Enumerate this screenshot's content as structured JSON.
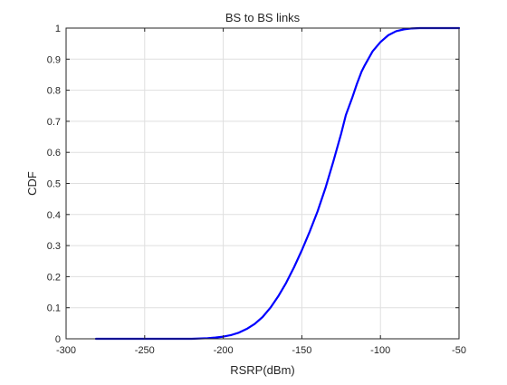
{
  "chart_data": {
    "type": "line",
    "title": "BS to BS links",
    "xlabel": "RSRP(dBm)",
    "ylabel": "CDF",
    "xlim": [
      -300,
      -50
    ],
    "ylim": [
      0,
      1
    ],
    "xticks": [
      -300,
      -250,
      -200,
      -150,
      -100,
      -50
    ],
    "xtick_labels": [
      "-300",
      "-250",
      "-200",
      "-150",
      "-100",
      "-50"
    ],
    "yticks": [
      0,
      0.1,
      0.2,
      0.3,
      0.4,
      0.5,
      0.6,
      0.7,
      0.8,
      0.9,
      1
    ],
    "ytick_labels": [
      "0",
      "0.1",
      "0.2",
      "0.3",
      "0.4",
      "0.5",
      "0.6",
      "0.7",
      "0.8",
      "0.9",
      "1"
    ],
    "grid": true,
    "line_color": "#0000ff",
    "series": [
      {
        "x": [
          -281,
          -260,
          -240,
          -220,
          -210,
          -205,
          -200,
          -195,
          -190,
          -185,
          -180,
          -175,
          -170,
          -165,
          -160,
          -155,
          -150,
          -145,
          -140,
          -135,
          -130,
          -125,
          -122,
          -118,
          -115,
          -112,
          -110,
          -105,
          -100,
          -95,
          -90,
          -85,
          -80,
          -75,
          -70,
          -60,
          -50
        ],
        "y": [
          0,
          0,
          0,
          0,
          0.002,
          0.004,
          0.007,
          0.012,
          0.02,
          0.032,
          0.048,
          0.07,
          0.1,
          0.137,
          0.18,
          0.23,
          0.285,
          0.345,
          0.41,
          0.485,
          0.57,
          0.66,
          0.72,
          0.775,
          0.82,
          0.86,
          0.88,
          0.925,
          0.955,
          0.977,
          0.99,
          0.996,
          0.999,
          1,
          1,
          1,
          1
        ]
      }
    ]
  }
}
